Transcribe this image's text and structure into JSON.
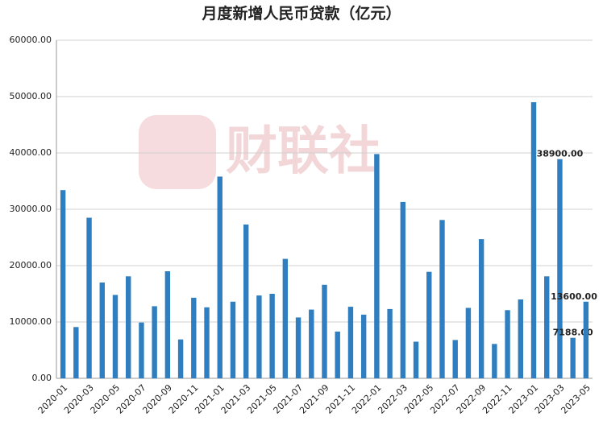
{
  "chart_data": {
    "type": "bar",
    "title": "月度新增人民币贷款（亿元）",
    "watermark": "财联社",
    "categories": [
      "2020-01",
      null,
      "2020-03",
      null,
      "2020-05",
      null,
      "2020-07",
      null,
      "2020-09",
      null,
      "2020-11",
      null,
      "2021-01",
      null,
      "2021-03",
      null,
      "2021-05",
      null,
      "2021-07",
      null,
      "2021-09",
      null,
      "2021-11",
      null,
      "2022-01",
      null,
      "2022-03",
      null,
      "2022-05",
      null,
      "2022-07",
      null,
      "2022-09",
      null,
      "2022-11",
      null,
      "2023-01",
      null,
      "2023-03",
      null,
      "2023-05"
    ],
    "values": [
      33400,
      9100,
      28500,
      17000,
      14800,
      18100,
      9900,
      12800,
      19000,
      6900,
      14300,
      12600,
      35800,
      13600,
      27300,
      14700,
      15000,
      21200,
      10800,
      12200,
      16600,
      8300,
      12700,
      11300,
      39800,
      12300,
      31300,
      6500,
      18900,
      28100,
      6800,
      12500,
      24700,
      6100,
      12100,
      14000,
      49000,
      18100,
      38900,
      7188,
      13600
    ],
    "value_labels": [
      null,
      null,
      null,
      null,
      null,
      null,
      null,
      null,
      null,
      null,
      null,
      null,
      null,
      null,
      null,
      null,
      null,
      null,
      null,
      null,
      null,
      null,
      null,
      null,
      null,
      null,
      null,
      null,
      null,
      null,
      null,
      null,
      null,
      null,
      null,
      null,
      null,
      null,
      "38900.00",
      "7188.00",
      "13600.00"
    ],
    "color": "#2f7ebf",
    "ylim": [
      0,
      60000
    ],
    "yticks": [
      {
        "value": 0,
        "label": "0.00"
      },
      {
        "value": 10000,
        "label": "10000.00"
      },
      {
        "value": 20000,
        "label": "20000.00"
      },
      {
        "value": 30000,
        "label": "30000.00"
      },
      {
        "value": 40000,
        "label": "40000.00"
      },
      {
        "value": 50000,
        "label": "50000.00"
      },
      {
        "value": 60000,
        "label": "60000.00"
      }
    ],
    "grid": true
  }
}
